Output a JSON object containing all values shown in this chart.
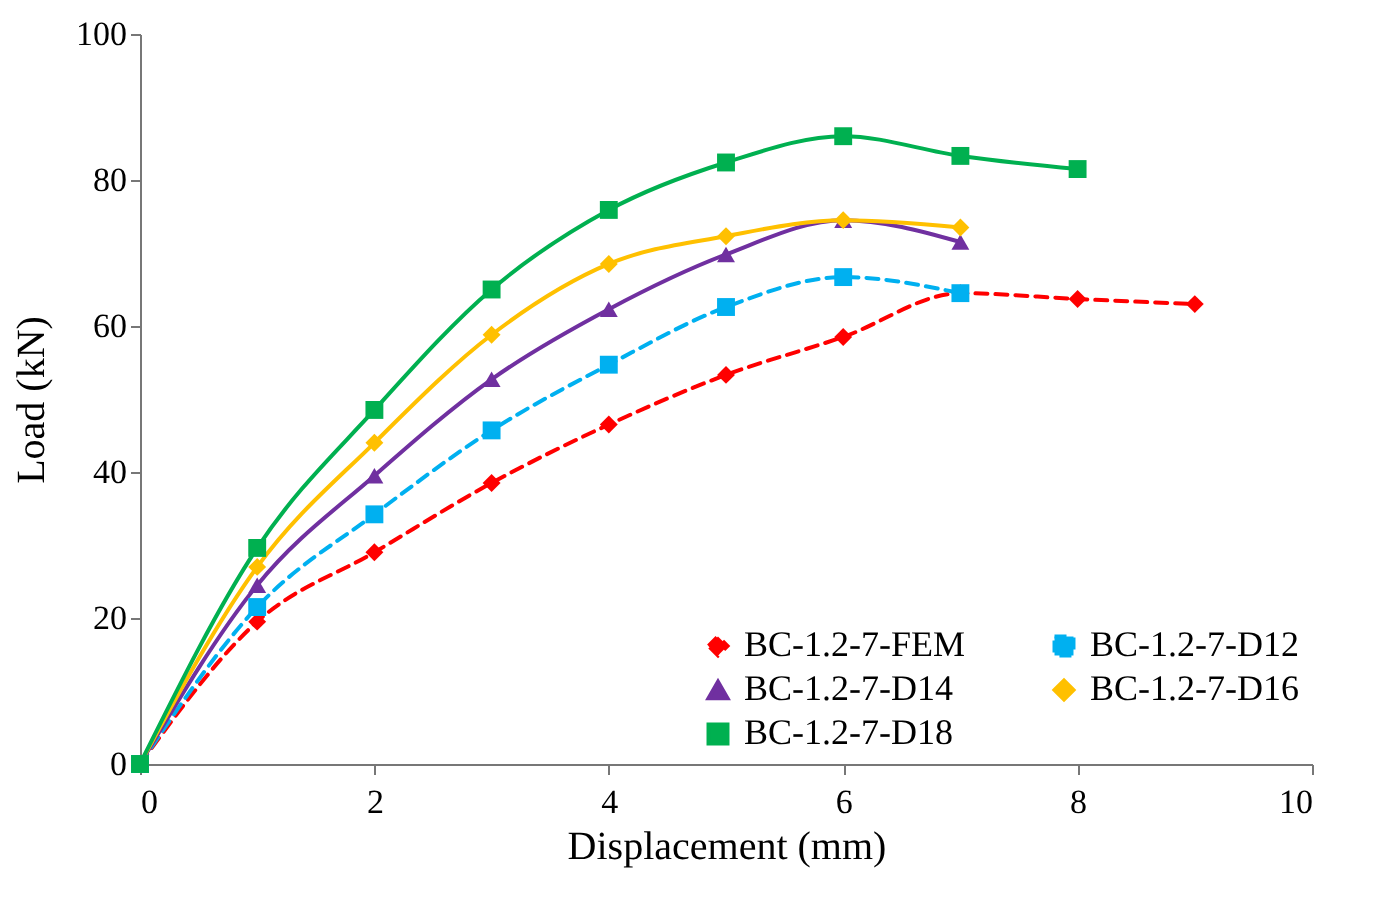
{
  "chart_data": {
    "type": "line",
    "xlabel": "Displacement (mm)",
    "ylabel": "Load (kN)",
    "x": [
      0,
      1,
      2,
      3,
      4,
      5,
      6,
      7,
      8,
      9
    ],
    "xlim": [
      0,
      10
    ],
    "xticks": [
      0,
      2,
      4,
      6,
      8,
      10
    ],
    "ylim": [
      0,
      100
    ],
    "yticks": [
      0,
      20,
      40,
      60,
      80,
      100
    ],
    "grid": false,
    "legend": "bottom right",
    "series": [
      {
        "name": "BC-1.2-7-FEM",
        "color": "#ff0000",
        "marker": "diamond",
        "line_style": "dashed",
        "values": [
          0,
          19.5,
          29,
          38.5,
          46.5,
          53.3,
          58.5,
          64.5,
          63.7,
          63
        ]
      },
      {
        "name": "BC-1.2-7-D12",
        "color": "#00b0f0",
        "marker": "square",
        "line_style": "dashed",
        "values": [
          0,
          21.5,
          34.2,
          45.7,
          54.7,
          62.6,
          66.7,
          64.5,
          null,
          null
        ]
      },
      {
        "name": "BC-1.2-7-D14",
        "color": "#7030a0",
        "marker": "triangle",
        "line_style": "solid",
        "values": [
          0,
          24.5,
          39.5,
          52.7,
          62.3,
          69.8,
          74.5,
          71.5,
          null,
          null
        ]
      },
      {
        "name": "BC-1.2-7-D16",
        "color": "#ffc000",
        "marker": "diamond",
        "line_style": "solid",
        "values": [
          0,
          27,
          44,
          58.8,
          68.5,
          72.3,
          74.5,
          73.5,
          null,
          null
        ]
      },
      {
        "name": "BC-1.2-7-D18",
        "color": "#00b050",
        "marker": "square",
        "line_style": "solid",
        "values": [
          0,
          29.6,
          48.5,
          65,
          75.9,
          82.4,
          86,
          83.3,
          81.5,
          null
        ]
      }
    ]
  }
}
